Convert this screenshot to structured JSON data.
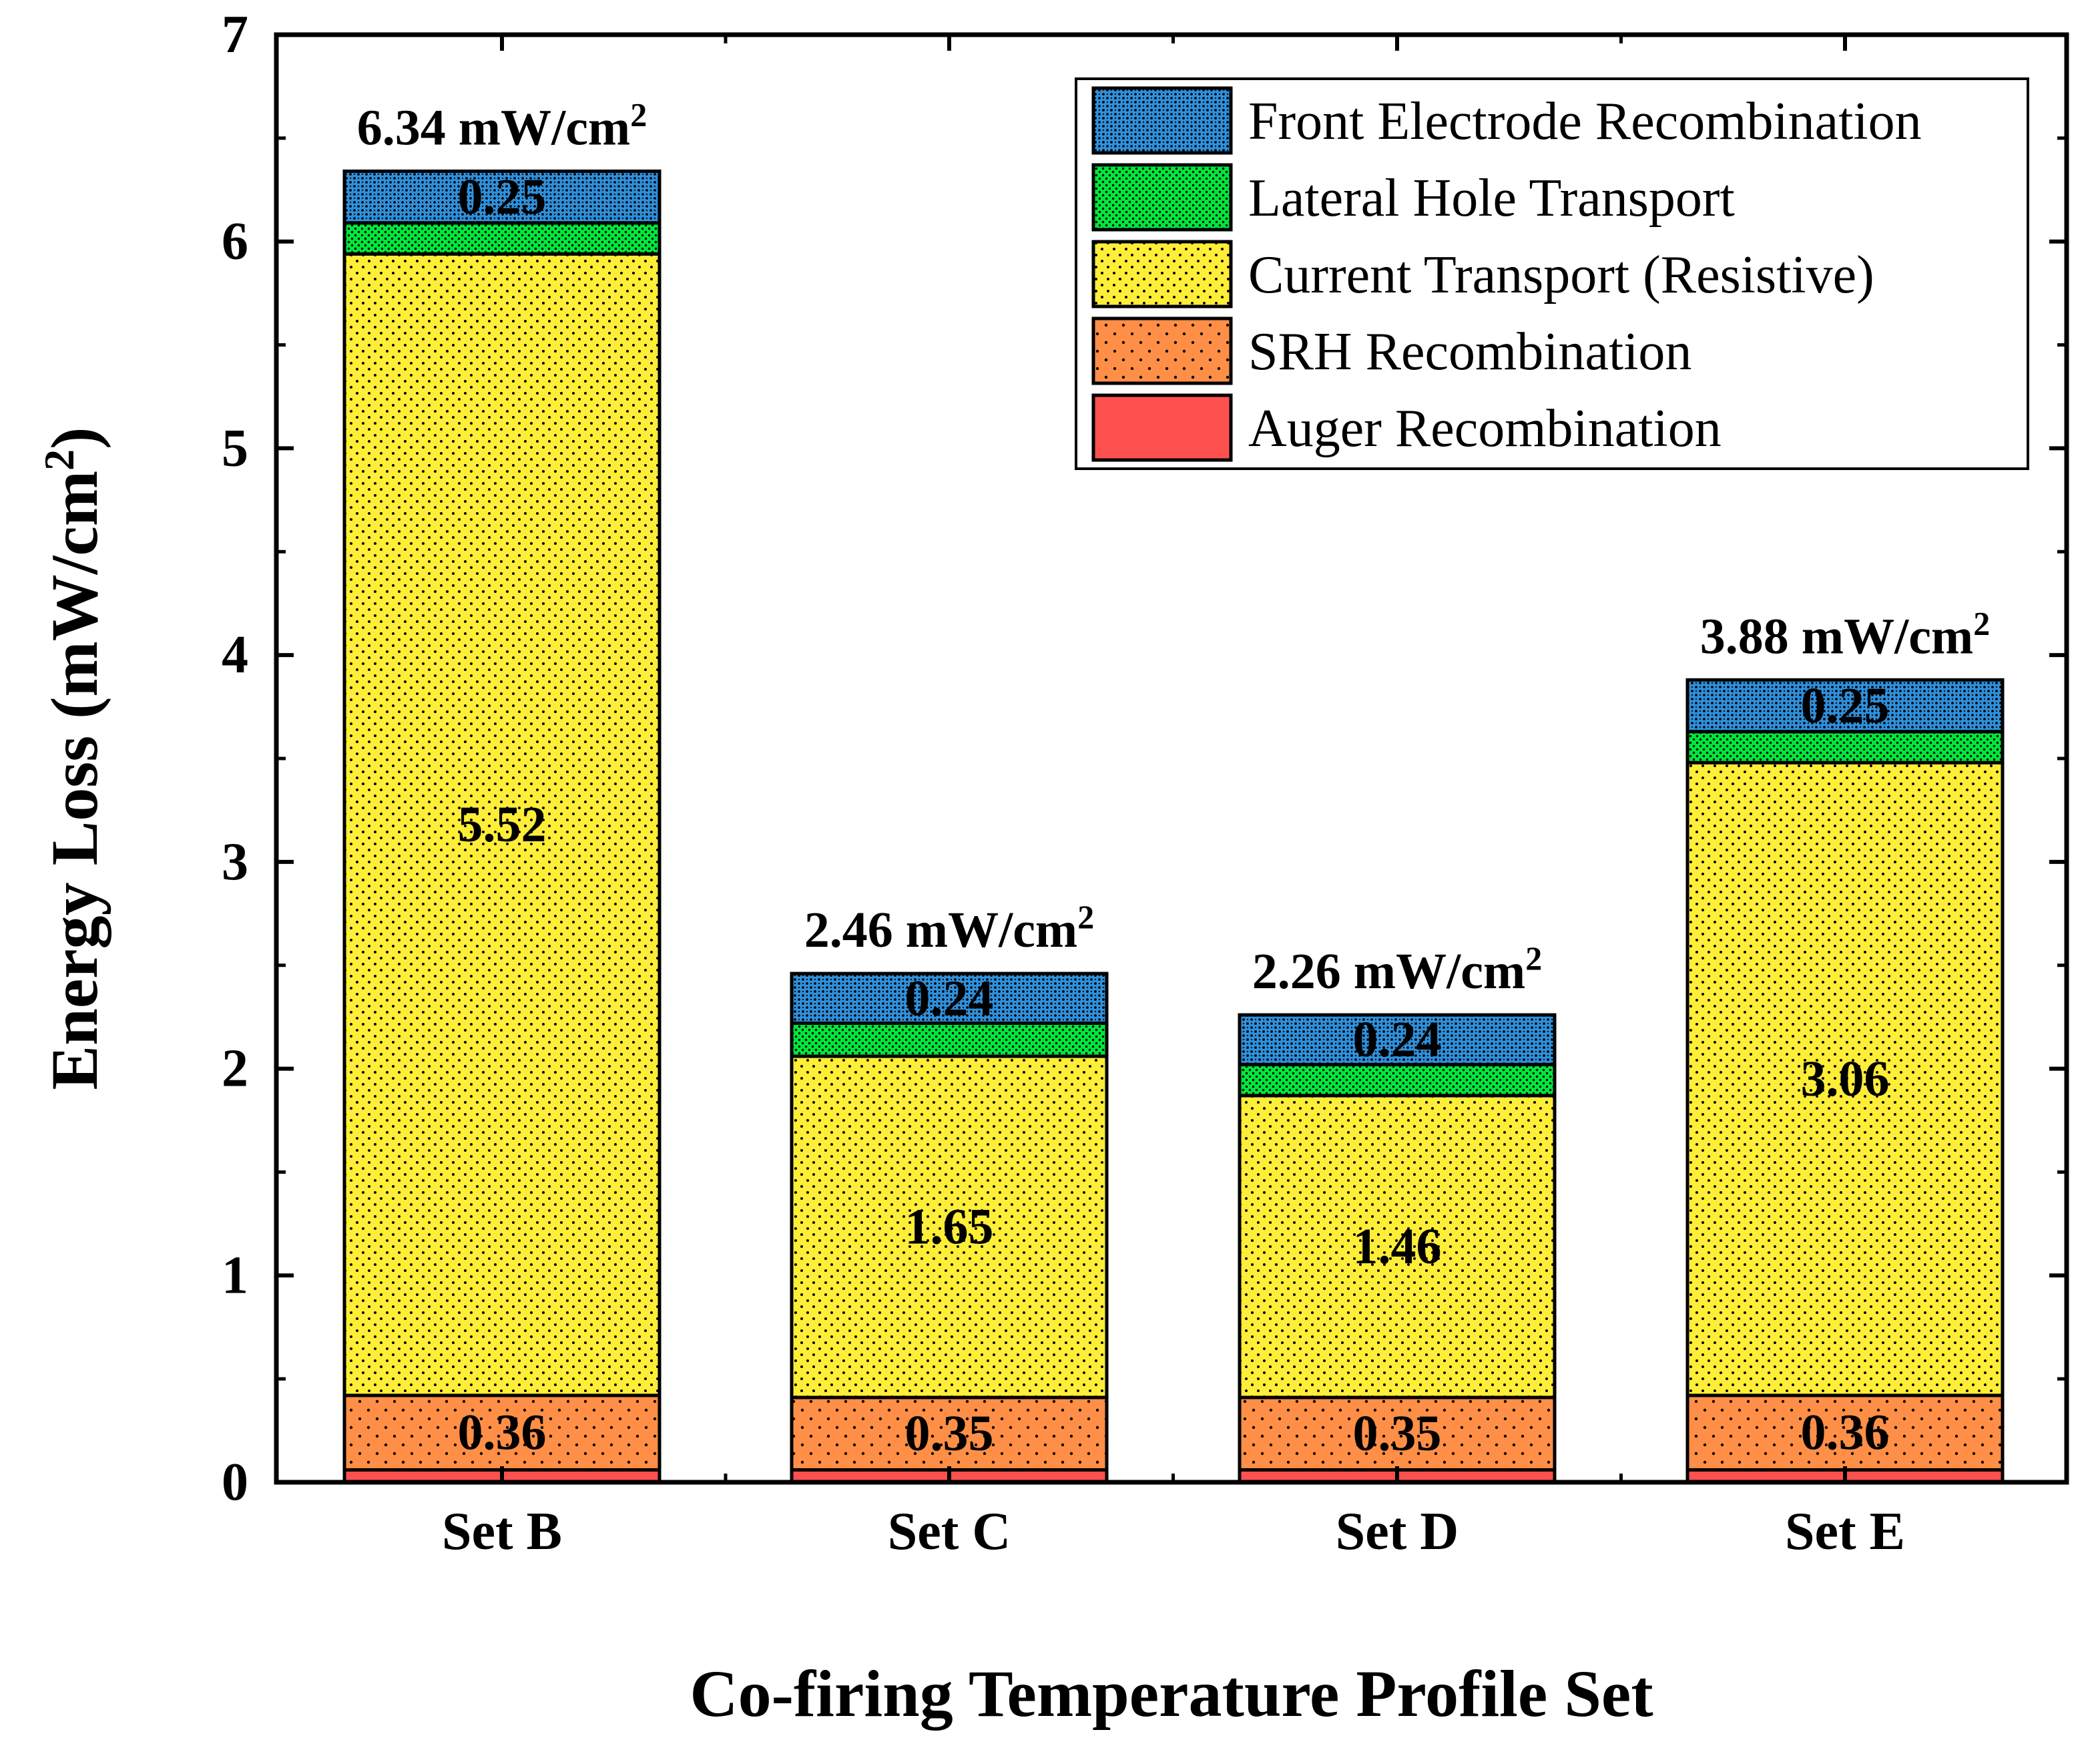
{
  "chart_data": {
    "type": "bar",
    "stacked": true,
    "title": "",
    "xlabel": "Co-firing Temperature Profile Set",
    "ylabel": {
      "main": "Energy Loss (mW/cm",
      "sup": "2",
      "close": ")"
    },
    "ylim": [
      0,
      7
    ],
    "yticks": [
      "0",
      "1",
      "2",
      "3",
      "4",
      "5",
      "6",
      "7"
    ],
    "grid": false,
    "legend_position": "top-right",
    "categories": [
      "Set B",
      "Set C",
      "Set D",
      "Set E"
    ],
    "series": [
      {
        "name": "Auger Recombination",
        "color": "#ff5050",
        "pattern": "solid",
        "values": [
          0.06,
          0.06,
          0.06,
          0.06
        ]
      },
      {
        "name": "SRH Recombination",
        "color": "#ff8f47",
        "pattern": "sparse-dots",
        "values": [
          0.36,
          0.35,
          0.35,
          0.36
        ]
      },
      {
        "name": "Current Transport (Resistive)",
        "color": "#ffee38",
        "pattern": "dots",
        "values": [
          5.52,
          1.65,
          1.46,
          3.06
        ]
      },
      {
        "name": "Lateral Hole Transport",
        "color": "#00e83b",
        "pattern": "dense-dots",
        "values": [
          0.15,
          0.16,
          0.15,
          0.15
        ]
      },
      {
        "name": "Front Electrode Recombination",
        "color": "#2f90dc",
        "pattern": "crosshatch",
        "values": [
          0.25,
          0.24,
          0.24,
          0.25
        ]
      }
    ],
    "segment_labels": [
      {
        "category": 0,
        "series": 1,
        "text": "0.36"
      },
      {
        "category": 0,
        "series": 2,
        "text": "5.52"
      },
      {
        "category": 0,
        "series": 4,
        "text": "0.25"
      },
      {
        "category": 1,
        "series": 1,
        "text": "0.35"
      },
      {
        "category": 1,
        "series": 2,
        "text": "1.65"
      },
      {
        "category": 1,
        "series": 4,
        "text": "0.24"
      },
      {
        "category": 2,
        "series": 1,
        "text": "0.35"
      },
      {
        "category": 2,
        "series": 2,
        "text": "1.46"
      },
      {
        "category": 2,
        "series": 4,
        "text": "0.24"
      },
      {
        "category": 3,
        "series": 1,
        "text": "0.36"
      },
      {
        "category": 3,
        "series": 2,
        "text": "3.06"
      },
      {
        "category": 3,
        "series": 4,
        "text": "0.25"
      }
    ],
    "totals": [
      {
        "value": "6.34",
        "unit": "mW/cm",
        "sup": "2"
      },
      {
        "value": "2.46",
        "unit": "mW/cm",
        "sup": "2"
      },
      {
        "value": "2.26",
        "unit": "mW/cm",
        "sup": "2"
      },
      {
        "value": "3.88",
        "unit": "mW/cm",
        "sup": "2"
      }
    ],
    "legend_order": [
      4,
      3,
      2,
      1,
      0
    ]
  }
}
